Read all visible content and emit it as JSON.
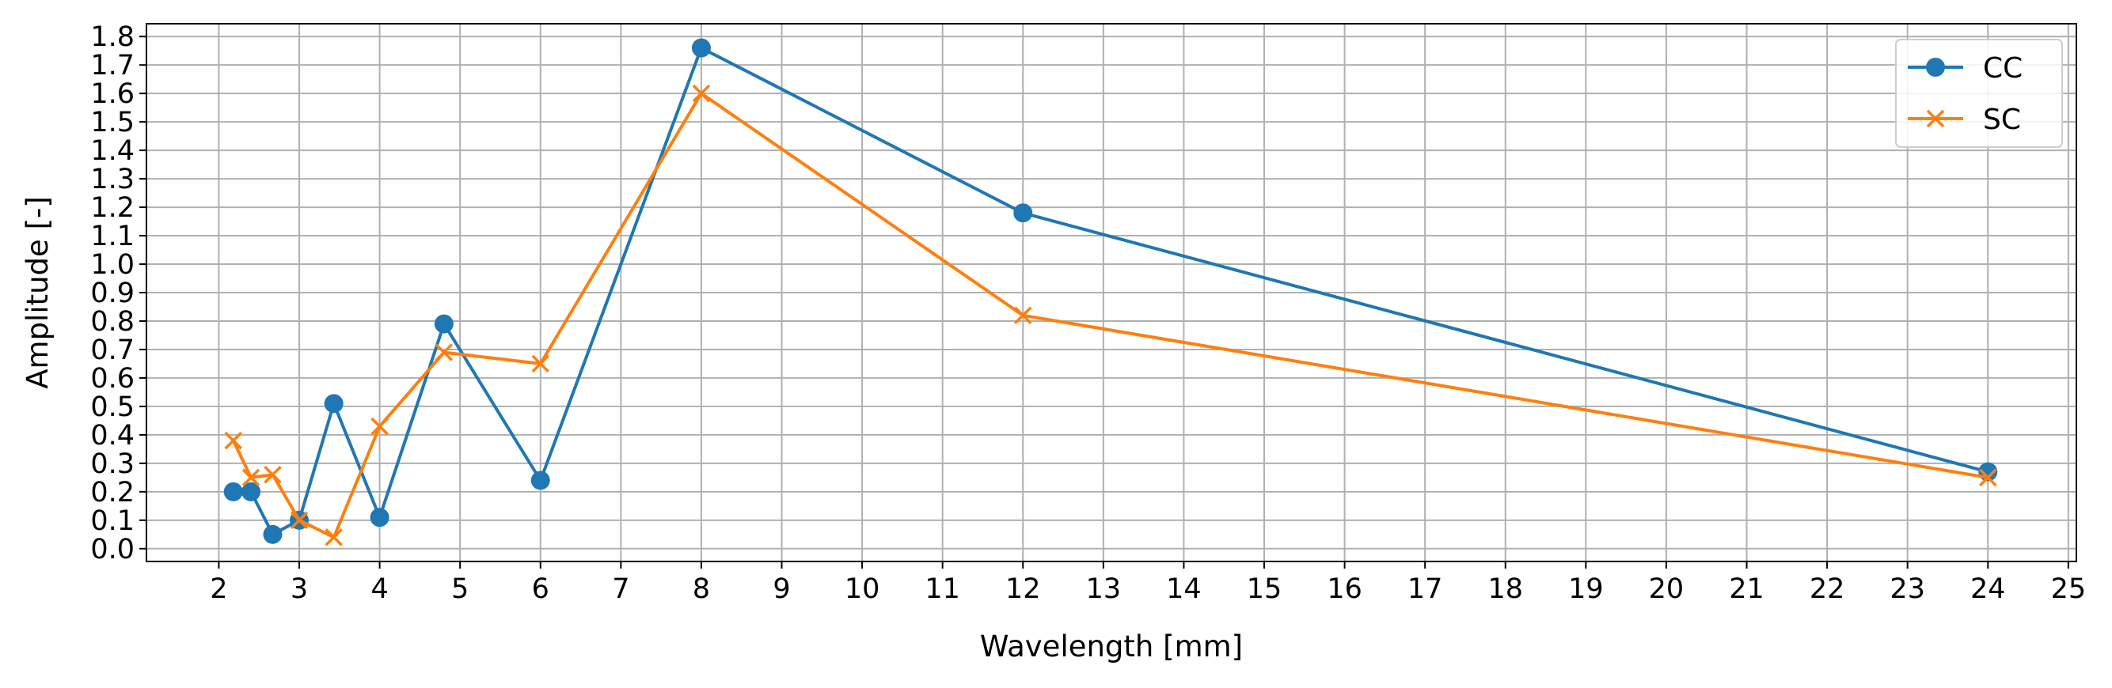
{
  "chart_data": {
    "type": "line",
    "title": "",
    "xlabel": "Wavelength [mm]",
    "ylabel": "Amplitude [-]",
    "xlim": [
      1.1,
      25.1
    ],
    "ylim": [
      -0.045,
      1.845
    ],
    "xticks": [
      2,
      3,
      4,
      5,
      6,
      7,
      8,
      9,
      10,
      11,
      12,
      13,
      14,
      15,
      16,
      17,
      18,
      19,
      20,
      21,
      22,
      23,
      24,
      25
    ],
    "yticks": [
      0.0,
      0.1,
      0.2,
      0.3,
      0.4,
      0.5,
      0.6,
      0.7,
      0.8,
      0.9,
      1.0,
      1.1,
      1.2,
      1.3,
      1.4,
      1.5,
      1.6,
      1.7,
      1.8
    ],
    "ytick_labels": [
      "0.0",
      "0.1",
      "0.2",
      "0.3",
      "0.4",
      "0.5",
      "0.6",
      "0.7",
      "0.8",
      "0.9",
      "1.0",
      "1.1",
      "1.2",
      "1.3",
      "1.4",
      "1.5",
      "1.6",
      "1.7",
      "1.8"
    ],
    "grid": true,
    "legend_position": "top-right",
    "series": [
      {
        "name": "CC",
        "color": "#1f77b4",
        "marker": "circle",
        "x": [
          2.18,
          2.4,
          2.67,
          3.0,
          3.43,
          4.0,
          4.8,
          6.0,
          8.0,
          12.0,
          24.0
        ],
        "y": [
          0.2,
          0.2,
          0.05,
          0.1,
          0.51,
          0.11,
          0.79,
          0.24,
          1.76,
          1.18,
          0.27
        ]
      },
      {
        "name": "SC",
        "color": "#ff7f0e",
        "marker": "x",
        "x": [
          2.18,
          2.4,
          2.67,
          3.0,
          3.43,
          4.0,
          4.8,
          6.0,
          8.0,
          12.0,
          24.0
        ],
        "y": [
          0.38,
          0.25,
          0.26,
          0.1,
          0.04,
          0.43,
          0.69,
          0.65,
          1.6,
          0.82,
          0.25
        ]
      }
    ]
  }
}
